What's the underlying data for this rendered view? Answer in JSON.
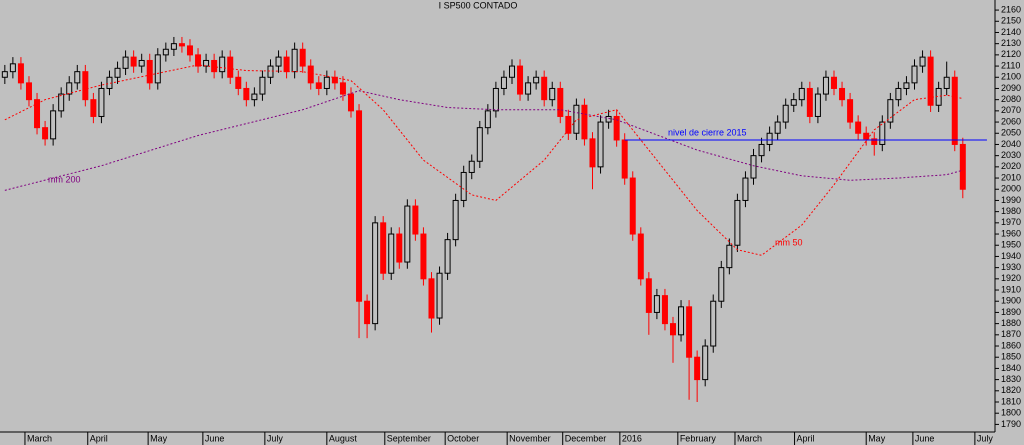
{
  "chart_data": {
    "type": "candlestick",
    "title": "I SP500 CONTADO",
    "up_color": "#000000",
    "down_color": "#ff0000",
    "xlim": [
      -0.6,
      123
    ],
    "xticks": [
      {
        "value": 2.5,
        "label": "March"
      },
      {
        "value": 10.3,
        "label": "April"
      },
      {
        "value": 17.8,
        "label": "May"
      },
      {
        "value": 24.6,
        "label": "June"
      },
      {
        "value": 32.3,
        "label": "July"
      },
      {
        "value": 40,
        "label": "August"
      },
      {
        "value": 47.2,
        "label": "September"
      },
      {
        "value": 54.7,
        "label": "October"
      },
      {
        "value": 62.4,
        "label": "November"
      },
      {
        "value": 69.3,
        "label": "December"
      },
      {
        "value": 76.4,
        "label": "2016"
      },
      {
        "value": 83.6,
        "label": "February"
      },
      {
        "value": 90.7,
        "label": "March"
      },
      {
        "value": 98.1,
        "label": "April"
      },
      {
        "value": 107,
        "label": "May"
      },
      {
        "value": 112.8,
        "label": "June"
      },
      {
        "value": 120.5,
        "label": "July"
      }
    ],
    "ylim": [
      1785,
      2169
    ],
    "yticks": [
      1790,
      1800,
      1810,
      1820,
      1830,
      1840,
      1850,
      1860,
      1870,
      1880,
      1890,
      1900,
      1910,
      1920,
      1930,
      1940,
      1950,
      1960,
      1970,
      1980,
      1990,
      2000,
      2010,
      2020,
      2030,
      2040,
      2050,
      2060,
      2070,
      2080,
      2090,
      2100,
      2110,
      2120,
      2130,
      2140,
      2150,
      2160
    ],
    "open": [
      2100,
      2105,
      2112,
      2095,
      2080,
      2055,
      2045,
      2070,
      2085,
      2095,
      2105,
      2080,
      2065,
      2090,
      2100,
      2108,
      2118,
      2110,
      2115,
      2095,
      2120,
      2125,
      2130,
      2128,
      2120,
      2110,
      2115,
      2105,
      2118,
      2100,
      2090,
      2080,
      2085,
      2100,
      2110,
      2118,
      2105,
      2125,
      2110,
      2095,
      2090,
      2100,
      2095,
      2085,
      2070,
      1900,
      1880,
      1970,
      1925,
      1960,
      1935,
      1985,
      1960,
      1920,
      1885,
      1925,
      1955,
      1990,
      2015,
      2025,
      2055,
      2070,
      2090,
      2100,
      2110,
      2085,
      2095,
      2100,
      2080,
      2090,
      2065,
      2050,
      2075,
      2045,
      2020,
      2060,
      2065,
      2044,
      2010,
      1960,
      1920,
      1890,
      1905,
      1880,
      1870,
      1895,
      1850,
      1830,
      1860,
      1900,
      1930,
      1950,
      1990,
      2010,
      2030,
      2040,
      2050,
      2060,
      2075,
      2080,
      2090,
      2065,
      2085,
      2100,
      2090,
      2080,
      2060,
      2050,
      2045,
      2040,
      2060,
      2080,
      2090,
      2095,
      2110,
      2118,
      2075,
      2090,
      2100,
      2040
    ],
    "high": [
      2111,
      2118,
      2118,
      2101,
      2086,
      2061,
      2076,
      2091,
      2101,
      2111,
      2111,
      2086,
      2096,
      2106,
      2114,
      2124,
      2124,
      2121,
      2121,
      2126,
      2131,
      2136,
      2136,
      2134,
      2126,
      2121,
      2121,
      2124,
      2124,
      2106,
      2096,
      2091,
      2106,
      2116,
      2124,
      2124,
      2131,
      2131,
      2116,
      2101,
      2106,
      2106,
      2101,
      2091,
      2076,
      1906,
      1976,
      1976,
      1966,
      1966,
      1991,
      1991,
      1966,
      1926,
      1931,
      1961,
      1996,
      2021,
      2031,
      2061,
      2076,
      2096,
      2106,
      2116,
      2116,
      2101,
      2106,
      2106,
      2096,
      2096,
      2071,
      2081,
      2081,
      2051,
      2066,
      2071,
      2071,
      2050,
      2016,
      1966,
      1926,
      1911,
      1911,
      1886,
      1901,
      1901,
      1856,
      1866,
      1906,
      1936,
      1956,
      1996,
      2016,
      2036,
      2046,
      2056,
      2066,
      2081,
      2086,
      2096,
      2096,
      2091,
      2106,
      2106,
      2096,
      2086,
      2066,
      2056,
      2051,
      2066,
      2086,
      2096,
      2101,
      2116,
      2124,
      2124,
      2096,
      2114,
      2106,
      2046
    ],
    "low": [
      2094,
      2099,
      2089,
      2074,
      2049,
      2039,
      2039,
      2064,
      2079,
      2089,
      2074,
      2059,
      2059,
      2084,
      2094,
      2102,
      2104,
      2104,
      2089,
      2089,
      2114,
      2119,
      2122,
      2114,
      2104,
      2104,
      2099,
      2099,
      2094,
      2084,
      2074,
      2074,
      2079,
      2094,
      2104,
      2099,
      2099,
      2104,
      2089,
      2084,
      2084,
      2089,
      2079,
      2064,
      1867,
      1867,
      1874,
      1919,
      1919,
      1929,
      1929,
      1954,
      1914,
      1872,
      1879,
      1919,
      1949,
      1984,
      2009,
      2019,
      2049,
      2064,
      2084,
      2094,
      2079,
      2079,
      2089,
      2074,
      2074,
      2059,
      2044,
      2044,
      2039,
      2000,
      2014,
      2054,
      2038,
      2004,
      1954,
      1914,
      1870,
      1884,
      1874,
      1845,
      1864,
      1812,
      1810,
      1824,
      1854,
      1894,
      1924,
      1944,
      1984,
      2004,
      2024,
      2034,
      2044,
      2054,
      2069,
      2074,
      2059,
      2059,
      2079,
      2084,
      2074,
      2054,
      2044,
      2039,
      2030,
      2034,
      2054,
      2074,
      2084,
      2089,
      2104,
      2069,
      2069,
      2084,
      2034,
      1992
    ],
    "close": [
      2105,
      2112,
      2095,
      2080,
      2055,
      2045,
      2070,
      2085,
      2095,
      2105,
      2080,
      2065,
      2090,
      2100,
      2108,
      2118,
      2110,
      2115,
      2095,
      2120,
      2125,
      2130,
      2128,
      2120,
      2110,
      2115,
      2105,
      2118,
      2100,
      2090,
      2080,
      2085,
      2100,
      2110,
      2118,
      2105,
      2125,
      2110,
      2095,
      2090,
      2100,
      2095,
      2085,
      2070,
      1900,
      1880,
      1970,
      1925,
      1960,
      1935,
      1985,
      1960,
      1920,
      1885,
      1925,
      1955,
      1990,
      2015,
      2025,
      2055,
      2070,
      2090,
      2100,
      2110,
      2085,
      2095,
      2100,
      2080,
      2090,
      2065,
      2050,
      2075,
      2045,
      2020,
      2060,
      2065,
      2044,
      2010,
      1960,
      1920,
      1890,
      1905,
      1880,
      1870,
      1895,
      1850,
      1830,
      1860,
      1900,
      1930,
      1950,
      1990,
      2010,
      2030,
      2040,
      2050,
      2060,
      2075,
      2080,
      2090,
      2065,
      2085,
      2100,
      2090,
      2080,
      2060,
      2050,
      2045,
      2040,
      2060,
      2080,
      2090,
      2095,
      2110,
      2118,
      2075,
      2090,
      2100,
      2040,
      2000
    ],
    "series": [
      {
        "name": "mm 200",
        "color": "#800080",
        "x": [
          0,
          12,
          24,
          37,
          44,
          49,
          55,
          61,
          69,
          76,
          86,
          93,
          99,
          105,
          111,
          117,
          119
        ],
        "values": [
          1999,
          2021,
          2048,
          2071,
          2088,
          2080,
          2073,
          2071,
          2071,
          2062,
          2035,
          2021,
          2012,
          2008,
          2010,
          2013,
          2017
        ]
      },
      {
        "name": "mm 50",
        "color": "#ff0000",
        "x": [
          0,
          5,
          12,
          18,
          24,
          30,
          37,
          43,
          47,
          52,
          58,
          61,
          67,
          71,
          76,
          81,
          86,
          91,
          94,
          99,
          103,
          108,
          113,
          117,
          119
        ],
        "values": [
          2062,
          2080,
          2093,
          2102,
          2111,
          2106,
          2105,
          2097,
          2071,
          2026,
          1995,
          1990,
          2026,
          2062,
          2071,
          2026,
          1981,
          1946,
          1941,
          1968,
          2004,
          2053,
          2080,
          2084,
          2081
        ]
      }
    ],
    "reference_line": {
      "name": "nivel de cierre 2015",
      "value": 2044,
      "x": [
        77,
        122
      ],
      "color": "#0000ff"
    }
  }
}
